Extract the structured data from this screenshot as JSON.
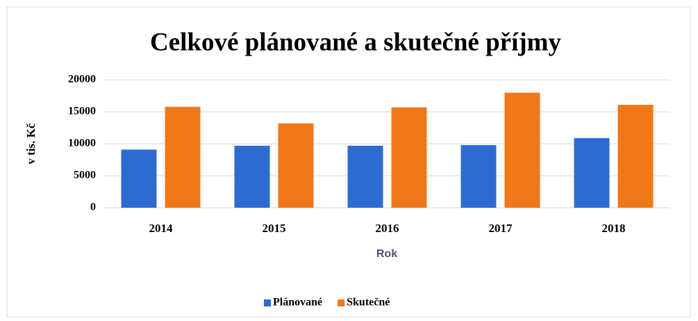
{
  "chart_data": {
    "type": "bar",
    "title": "Celkové plánované a skutečné příjmy",
    "x_label": "Rok",
    "y_label": "v tis. Kč",
    "categories": [
      "2014",
      "2015",
      "2016",
      "2017",
      "2018"
    ],
    "series": [
      {
        "name": "Plánované",
        "color": "#2e6bd1",
        "values": [
          9100,
          9700,
          9700,
          9800,
          10900
        ]
      },
      {
        "name": "Skutečné",
        "color": "#f07818",
        "values": [
          15800,
          13200,
          15700,
          18000,
          16100
        ]
      }
    ],
    "ylim": [
      0,
      20000
    ],
    "yticks": [
      0,
      5000,
      10000,
      15000,
      20000
    ],
    "grid": true,
    "legend": "bottom"
  }
}
